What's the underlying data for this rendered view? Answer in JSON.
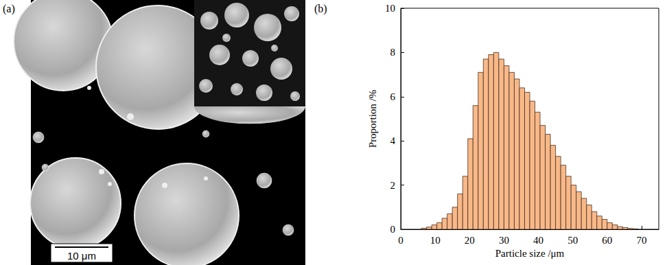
{
  "panel_a": {
    "panel_label": "(a)",
    "scale_bar_label": "10 μm"
  },
  "chart_data": {
    "type": "histogram",
    "panel_label": "(b)",
    "x_label": "Particle size /μm",
    "y_label": "Proportion /%",
    "bins": [
      6,
      7.5,
      9,
      10.5,
      12,
      13.5,
      15,
      16.5,
      18,
      19.5,
      21,
      22.5,
      24,
      25.5,
      27,
      28.5,
      30,
      31.5,
      33,
      34.5,
      36,
      37.5,
      39,
      40.5,
      42,
      43.5,
      45,
      46.5,
      48,
      49.5,
      51,
      52.5,
      54,
      55.5,
      57,
      58.5,
      60,
      61.5,
      63,
      64.5,
      66,
      67.5,
      69
    ],
    "values": [
      0.05,
      0.1,
      0.2,
      0.3,
      0.5,
      0.7,
      1.0,
      1.6,
      2.4,
      4.1,
      5.6,
      7.1,
      7.7,
      7.9,
      8.0,
      7.7,
      7.4,
      7.1,
      6.8,
      6.4,
      6.2,
      5.8,
      5.3,
      4.7,
      4.3,
      3.8,
      3.3,
      2.9,
      2.4,
      2.0,
      1.7,
      1.4,
      1.1,
      0.8,
      0.6,
      0.45,
      0.3,
      0.2,
      0.12,
      0.08,
      0.04,
      0.02
    ],
    "color": "#f8b888",
    "xlim": [
      0,
      75
    ],
    "xticks": [
      0,
      10,
      20,
      30,
      40,
      50,
      60,
      70
    ],
    "ylim": [
      0,
      10
    ],
    "yticks": [
      0,
      2,
      4,
      6,
      8,
      10
    ],
    "grid": false
  }
}
